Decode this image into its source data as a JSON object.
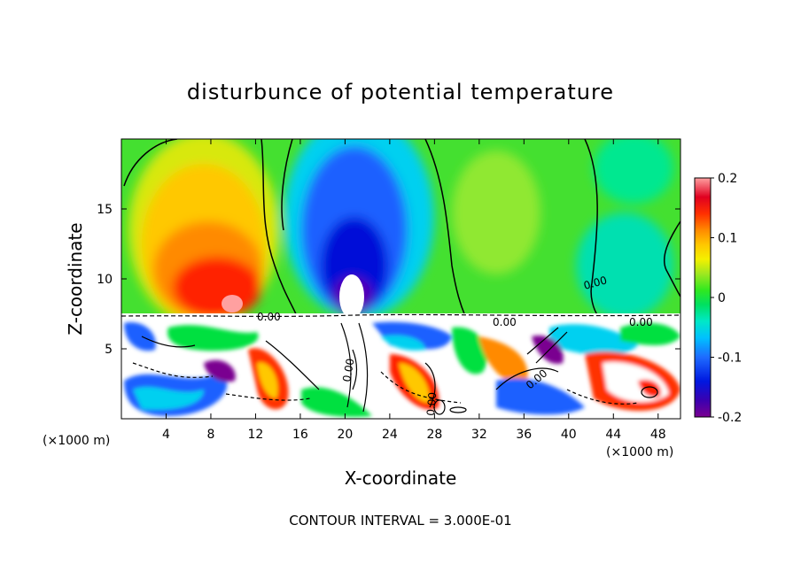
{
  "chart_data": {
    "type": "heatmap",
    "title": "disturbunce of potential temperature",
    "xlabel": "X-coordinate",
    "ylabel": "Z-coordinate",
    "x_unit_left": "(×1000 m)",
    "x_unit_right": "(×1000 m)",
    "xlim": [
      0,
      50
    ],
    "ylim": [
      0,
      20
    ],
    "x_ticks": [
      4,
      8,
      12,
      16,
      20,
      24,
      28,
      32,
      36,
      40,
      44,
      48
    ],
    "y_ticks": [
      5,
      10,
      15
    ],
    "colorbar": {
      "min": -0.2,
      "max": 0.2,
      "tick_labels": [
        "0.2",
        "0.1",
        "0",
        "-0.1",
        "-0.2"
      ],
      "tick_values": [
        0.2,
        0.1,
        0,
        -0.1,
        -0.2
      ]
    },
    "contour_labels": [
      "0.00",
      "0.00",
      "0.00",
      "0.00",
      "0.00",
      "0.00",
      "0.00"
    ],
    "footer": "CONTOUR INTERVAL = 3.000E-01"
  }
}
